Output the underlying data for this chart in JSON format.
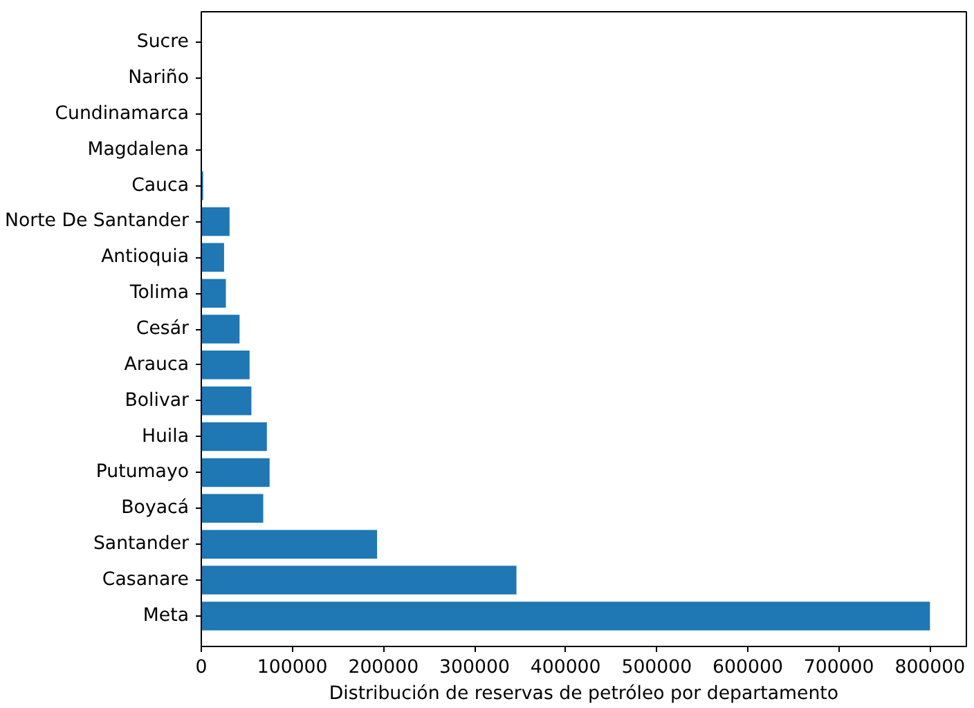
{
  "chart_data": {
    "type": "bar",
    "orientation": "horizontal",
    "xlabel": "Distribución de reservas de petróleo por departamento",
    "categories": [
      "Sucre",
      "Nariño",
      "Cundinamarca",
      "Magdalena",
      "Cauca",
      "Norte De Santander",
      "Antioquia",
      "Tolima",
      "Cesár",
      "Arauca",
      "Bolivar",
      "Huila",
      "Putumayo",
      "Boyacá",
      "Santander",
      "Casanare",
      "Meta"
    ],
    "values": [
      0,
      0,
      0,
      0,
      2000,
      31000,
      25000,
      27000,
      42000,
      53000,
      55000,
      72000,
      75000,
      68000,
      193000,
      346000,
      800000
    ],
    "color": "#1f77b4",
    "xlim": [
      0,
      840000
    ],
    "xticks": [
      0,
      100000,
      200000,
      300000,
      400000,
      500000,
      600000,
      700000,
      800000
    ],
    "grid": false
  }
}
